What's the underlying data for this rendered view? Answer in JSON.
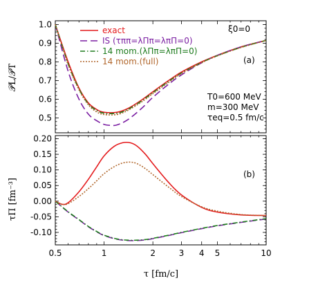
{
  "chart_data": [
    {
      "type": "line",
      "panel_label": "(a)",
      "ylabel": "𝒫L/𝒫T",
      "xlabel": "",
      "xscale": "log",
      "xlim": [
        0.5,
        10
      ],
      "ylim": [
        0.42,
        1.02
      ],
      "yticks": [
        0.5,
        0.6,
        0.7,
        0.8,
        0.9,
        1.0
      ],
      "ytick_labels": [
        "0.5",
        "0.6",
        "0.7",
        "0.8",
        "0.9",
        "1.0"
      ],
      "xticks": [
        0.5,
        1,
        2,
        3,
        4,
        5,
        10
      ],
      "top_right_annotation": "ξ0=0",
      "annotations": [
        "T0=600 MeV",
        "m=300 MeV",
        "τeq=0.5 fm/c"
      ],
      "legend_position": "top-left",
      "series": [
        {
          "name": "exact",
          "color": "#e41a1c",
          "dash": "solid",
          "x": [
            0.5,
            0.6,
            0.7,
            0.8,
            0.9,
            1.0,
            1.2,
            1.4,
            1.7,
            2.0,
            2.5,
            3.0,
            4.0,
            5.0,
            7.0,
            10.0
          ],
          "y": [
            1.0,
            0.8,
            0.66,
            0.58,
            0.545,
            0.53,
            0.53,
            0.55,
            0.595,
            0.64,
            0.7,
            0.745,
            0.8,
            0.835,
            0.88,
            0.915
          ]
        },
        {
          "name": "IS (τππ=λΠπ=λπΠ=0)",
          "color": "#7b1fa2",
          "dash": "long-dash",
          "x": [
            0.5,
            0.6,
            0.7,
            0.8,
            0.9,
            1.0,
            1.1,
            1.2,
            1.4,
            1.7,
            2.0,
            2.5,
            3.0,
            4.0,
            5.0,
            7.0,
            10.0
          ],
          "y": [
            1.0,
            0.75,
            0.6,
            0.52,
            0.485,
            0.465,
            0.46,
            0.462,
            0.49,
            0.55,
            0.61,
            0.68,
            0.73,
            0.795,
            0.835,
            0.88,
            0.915
          ]
        },
        {
          "name": "14 mom.(λΠπ=λπΠ=0)",
          "color": "#1b7a1b",
          "dash": "dash-dot",
          "x": [
            0.5,
            0.6,
            0.7,
            0.8,
            0.9,
            1.0,
            1.2,
            1.4,
            1.7,
            2.0,
            2.5,
            3.0,
            4.0,
            5.0,
            7.0,
            10.0
          ],
          "y": [
            1.0,
            0.79,
            0.655,
            0.575,
            0.54,
            0.525,
            0.525,
            0.545,
            0.59,
            0.635,
            0.695,
            0.74,
            0.797,
            0.833,
            0.878,
            0.915
          ]
        },
        {
          "name": "14 mom.(full)",
          "color": "#b0652a",
          "dash": "dotted",
          "x": [
            0.5,
            0.6,
            0.7,
            0.8,
            0.9,
            1.0,
            1.2,
            1.4,
            1.7,
            2.0,
            2.5,
            3.0,
            4.0,
            5.0,
            7.0,
            10.0
          ],
          "y": [
            1.0,
            0.785,
            0.65,
            0.57,
            0.532,
            0.518,
            0.518,
            0.54,
            0.585,
            0.63,
            0.69,
            0.737,
            0.795,
            0.832,
            0.877,
            0.914
          ]
        }
      ]
    },
    {
      "type": "line",
      "panel_label": "(b)",
      "ylabel": "τΠ [fm⁻³]",
      "xlabel": "τ [fm/c]",
      "xscale": "log",
      "xlim": [
        0.5,
        10
      ],
      "ylim": [
        -0.14,
        0.21
      ],
      "yticks": [
        -0.1,
        -0.05,
        0.0,
        0.05,
        0.1,
        0.15,
        0.2
      ],
      "ytick_labels": [
        "-0.10",
        "-0.05",
        "0.00",
        "0.05",
        "0.10",
        "0.15",
        "0.20"
      ],
      "xticks": [
        0.5,
        1,
        2,
        3,
        4,
        5,
        10
      ],
      "xtick_labels": [
        "0.5",
        "1",
        "2",
        "3",
        "4",
        "5",
        "10"
      ],
      "series": [
        {
          "name": "exact",
          "color": "#e41a1c",
          "dash": "solid",
          "x": [
            0.5,
            0.55,
            0.6,
            0.7,
            0.8,
            0.9,
            1.0,
            1.15,
            1.3,
            1.45,
            1.6,
            1.8,
            2.0,
            2.5,
            3.0,
            4.0,
            5.0,
            7.0,
            10.0
          ],
          "y": [
            0.0,
            -0.01,
            -0.005,
            0.03,
            0.07,
            0.11,
            0.145,
            0.175,
            0.187,
            0.187,
            0.176,
            0.15,
            0.12,
            0.06,
            0.02,
            -0.02,
            -0.035,
            -0.044,
            -0.046
          ]
        },
        {
          "name": "IS (τππ=λΠπ=λπΠ=0)",
          "color": "#7b1fa2",
          "dash": "long-dash",
          "x": [
            0.5,
            0.6,
            0.7,
            0.8,
            0.9,
            1.0,
            1.2,
            1.4,
            1.6,
            1.8,
            2.0,
            2.5,
            3.0,
            4.0,
            5.0,
            7.0,
            10.0
          ],
          "y": [
            0.0,
            -0.035,
            -0.06,
            -0.082,
            -0.098,
            -0.11,
            -0.122,
            -0.126,
            -0.126,
            -0.124,
            -0.12,
            -0.11,
            -0.101,
            -0.088,
            -0.079,
            -0.068,
            -0.057
          ]
        },
        {
          "name": "14 mom.(λΠπ=λπΠ=0)",
          "color": "#1b7a1b",
          "dash": "dash-dot",
          "x": [
            0.5,
            0.6,
            0.7,
            0.8,
            0.9,
            1.0,
            1.2,
            1.4,
            1.6,
            1.8,
            2.0,
            2.5,
            3.0,
            4.0,
            5.0,
            7.0,
            10.0
          ],
          "y": [
            0.0,
            -0.034,
            -0.059,
            -0.081,
            -0.097,
            -0.109,
            -0.121,
            -0.125,
            -0.125,
            -0.123,
            -0.119,
            -0.109,
            -0.1,
            -0.087,
            -0.078,
            -0.067,
            -0.056
          ]
        },
        {
          "name": "14 mom.(full)",
          "color": "#b0652a",
          "dash": "dotted",
          "x": [
            0.5,
            0.55,
            0.6,
            0.7,
            0.8,
            0.9,
            1.0,
            1.15,
            1.3,
            1.45,
            1.6,
            1.8,
            2.0,
            2.5,
            3.0,
            4.0,
            5.0,
            7.0,
            10.0
          ],
          "y": [
            0.0,
            -0.01,
            -0.008,
            0.015,
            0.04,
            0.065,
            0.088,
            0.11,
            0.122,
            0.125,
            0.12,
            0.104,
            0.085,
            0.045,
            0.015,
            -0.018,
            -0.032,
            -0.043,
            -0.046
          ]
        }
      ]
    }
  ]
}
